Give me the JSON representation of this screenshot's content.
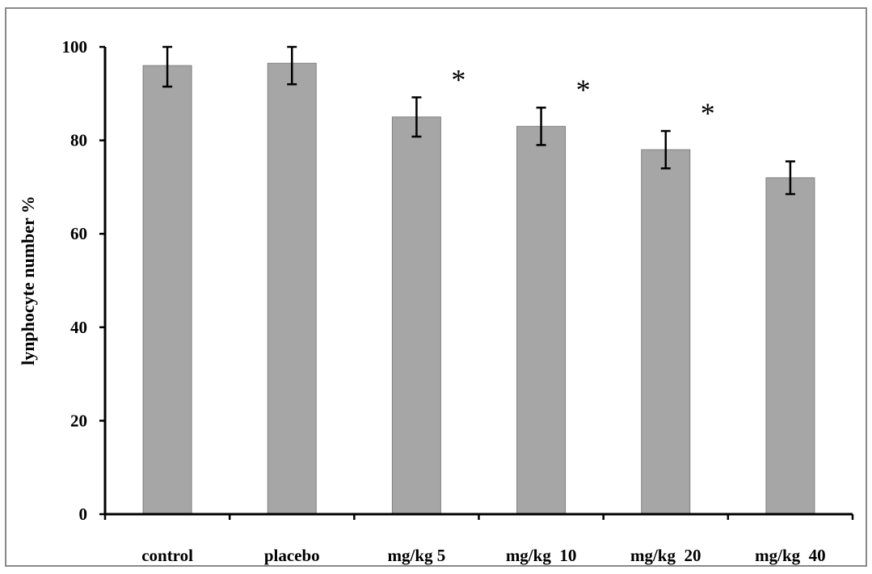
{
  "chart_data": {
    "type": "bar",
    "title": "",
    "xlabel": "",
    "ylabel": "lynphocyte number %",
    "ylim": [
      0,
      100
    ],
    "yticks": [
      0,
      20,
      40,
      60,
      80,
      100
    ],
    "grid": false,
    "categories": [
      "control",
      "placebo",
      "mg/kg 5",
      "mg/kg  10",
      "mg/kg  20",
      "mg/kg  40"
    ],
    "series": [
      {
        "values": [
          96,
          96.5,
          85,
          83,
          78,
          72
        ],
        "errors": [
          4.5,
          4.5,
          4.2,
          4,
          4,
          3.5
        ],
        "significance": [
          "",
          "",
          "*",
          "*",
          "*",
          ""
        ]
      }
    ],
    "colors": {
      "bar": "#a6a6a6",
      "bar_edge": "#7f7f7f",
      "axis": "#000000",
      "frame": "#888888"
    }
  }
}
